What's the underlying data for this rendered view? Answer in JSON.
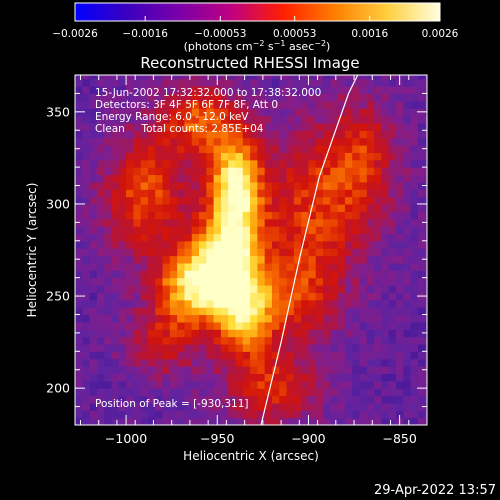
{
  "chart_data": {
    "type": "heatmap",
    "title": "Reconstructed RHESSI Image",
    "xlabel": "Heliocentric X (arcsec)",
    "ylabel": "Heliocentric Y (arcsec)",
    "xlim": [
      -1028,
      -835
    ],
    "ylim": [
      180,
      370
    ],
    "xticks": [
      "−1000",
      "−950",
      "−900",
      "−850"
    ],
    "xtick_values": [
      -1000,
      -950,
      -900,
      -850
    ],
    "yticks": [
      "200",
      "250",
      "300",
      "350"
    ],
    "ytick_values": [
      200,
      250,
      300,
      350
    ],
    "colorbar": {
      "ticks": [
        "−0.0026",
        "−0.0016",
        "−0.00053",
        "0.00053",
        "0.0016",
        "0.0026"
      ],
      "tick_values": [
        -0.0026,
        -0.0016,
        -0.00053,
        0.00053,
        0.0016,
        0.0026
      ],
      "units_prefix": "(photons cm",
      "units_exp1": "−2",
      "units_mid": " s",
      "units_exp2": "−1",
      "units_mid2": " asec",
      "units_exp3": "−2",
      "units_suffix": ")",
      "colors": [
        "#0000ff",
        "#3c00c0",
        "#7a00a8",
        "#c00080",
        "#ff2000",
        "#ff8000",
        "#ffd040",
        "#ffffe0"
      ]
    },
    "annotations": {
      "time_range": "15-Jun-2002 17:32:32.000 to 17:38:32.000",
      "detectors": "Detectors: 3F 4F 5F 6F 7F 8F, Att 0",
      "energy": "Energy Range: 6.0 - 12.0 keV",
      "clean": "Clean     Total counts: 2.85E+04",
      "peak": "Position of Peak = [-930,311]"
    },
    "limb_line": [
      [
        -926,
        180
      ],
      [
        -915,
        225
      ],
      [
        -905,
        270
      ],
      [
        -894,
        315
      ],
      [
        -878,
        360
      ],
      [
        -873,
        370
      ]
    ],
    "peak_position": [
      -930,
      311
    ],
    "emission_blobs": [
      {
        "x": -940,
        "y": 310,
        "amp": 1.0,
        "sx": 10,
        "sy": 18
      },
      {
        "x": -945,
        "y": 270,
        "amp": 0.9,
        "sx": 14,
        "sy": 18
      },
      {
        "x": -965,
        "y": 255,
        "amp": 0.75,
        "sx": 14,
        "sy": 14
      },
      {
        "x": -935,
        "y": 240,
        "amp": 0.75,
        "sx": 12,
        "sy": 16
      },
      {
        "x": -990,
        "y": 305,
        "amp": 0.55,
        "sx": 16,
        "sy": 22
      },
      {
        "x": -960,
        "y": 345,
        "amp": 0.55,
        "sx": 16,
        "sy": 14
      },
      {
        "x": -895,
        "y": 300,
        "amp": 0.5,
        "sx": 22,
        "sy": 28
      },
      {
        "x": -870,
        "y": 330,
        "amp": 0.35,
        "sx": 14,
        "sy": 20
      },
      {
        "x": -920,
        "y": 200,
        "amp": 0.45,
        "sx": 18,
        "sy": 14
      },
      {
        "x": -980,
        "y": 225,
        "amp": 0.35,
        "sx": 14,
        "sy": 14
      },
      {
        "x": -905,
        "y": 250,
        "amp": 0.4,
        "sx": 16,
        "sy": 18
      }
    ]
  },
  "footer": {
    "date": "29-Apr-2022 13:57"
  }
}
